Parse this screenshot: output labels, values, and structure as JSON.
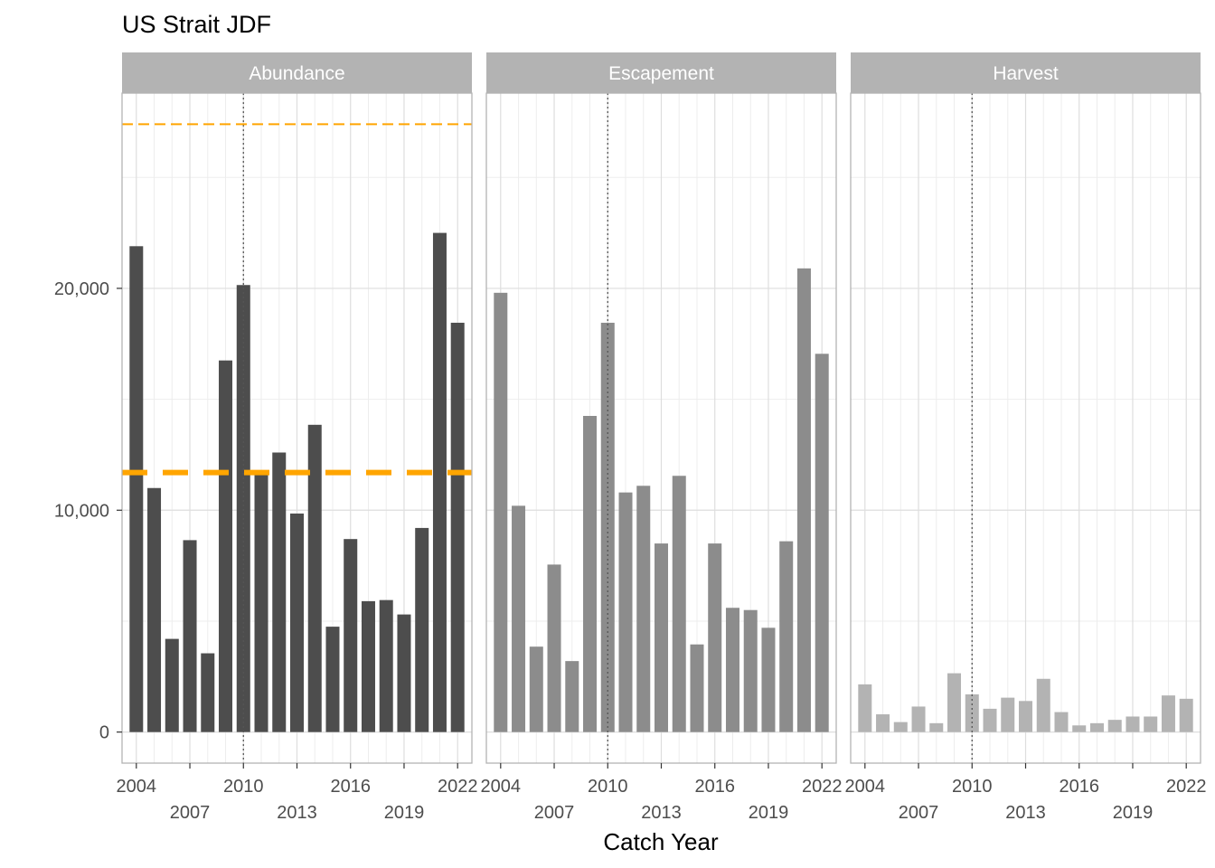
{
  "chart_data": {
    "type": "bar",
    "title": "US Strait JDF",
    "xlabel": "Catch Year",
    "ylabel": "",
    "facets": [
      "Abundance",
      "Escapement",
      "Harvest"
    ],
    "x": [
      2004,
      2005,
      2006,
      2007,
      2008,
      2009,
      2010,
      2011,
      2012,
      2013,
      2014,
      2015,
      2016,
      2017,
      2018,
      2019,
      2020,
      2021,
      2022
    ],
    "xlim": [
      2003.2,
      2022.8
    ],
    "ylim": [
      -1400,
      28800
    ],
    "x_ticks": [
      2004,
      2007,
      2010,
      2013,
      2016,
      2019,
      2022
    ],
    "x_tick_labels": [
      "2004",
      "2007",
      "2010",
      "2013",
      "2016",
      "2019",
      "2022"
    ],
    "y_ticks": [
      0,
      10000,
      20000
    ],
    "y_tick_labels": [
      "0",
      "10,000",
      "20,000"
    ],
    "grid": true,
    "series": [
      {
        "facet": "Abundance",
        "color": "#4d4d4d",
        "values": [
          21900,
          11000,
          4200,
          8650,
          3550,
          16750,
          20150,
          11700,
          12600,
          9850,
          13850,
          4750,
          8700,
          5900,
          5950,
          5300,
          9200,
          22500,
          18450
        ]
      },
      {
        "facet": "Escapement",
        "color": "#8c8c8c",
        "values": [
          19800,
          10200,
          3850,
          7550,
          3200,
          14250,
          18450,
          10800,
          11100,
          8500,
          11550,
          3950,
          8500,
          5600,
          5500,
          4700,
          8600,
          20900,
          17050
        ]
      },
      {
        "facet": "Harvest",
        "color": "#b3b3b3",
        "values": [
          2150,
          800,
          450,
          1150,
          400,
          2650,
          1700,
          1050,
          1550,
          1400,
          2400,
          900,
          300,
          400,
          550,
          700,
          700,
          1650,
          1500
        ]
      }
    ],
    "reference_lines": {
      "vertical_dotted_x": 2010,
      "abundance_dashed_thick_y": 11700,
      "abundance_dashed_thin_y": 27400,
      "reference_color": "#FFA500"
    },
    "strip_color": "#b3b3b3"
  }
}
